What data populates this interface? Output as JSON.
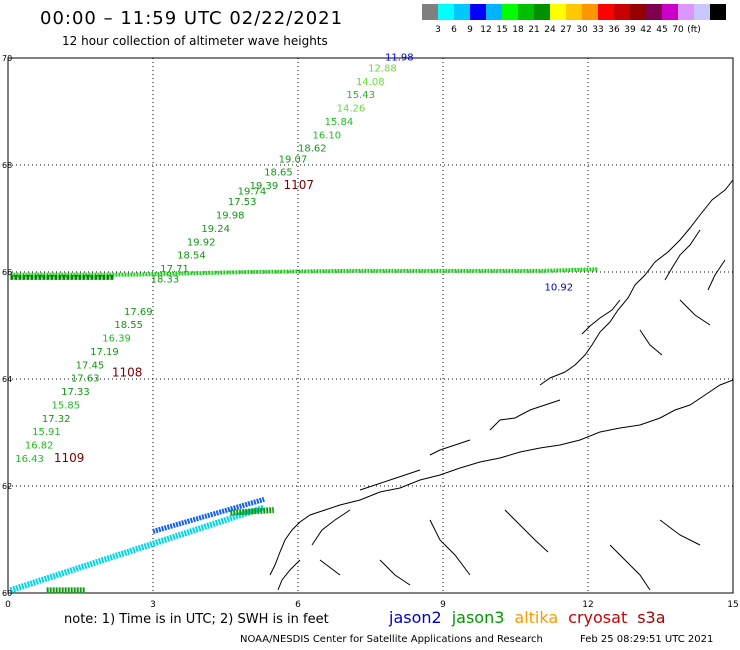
{
  "header": {
    "title": "00:00 – 11:59 UTC 02/22/2021",
    "subtitle": "12 hour collection of altimeter wave heights"
  },
  "scale": {
    "unit": "(ft)",
    "colors": [
      "#7f7f7f",
      "#00ffff",
      "#00c8ff",
      "#0000ff",
      "#00b4ff",
      "#00ff00",
      "#00c000",
      "#009000",
      "#ffff00",
      "#ffc800",
      "#ff9600",
      "#ff0000",
      "#c80000",
      "#960000",
      "#800050",
      "#c800c8",
      "#dc96ff",
      "#c8c8ff",
      "#000000"
    ],
    "labels": [
      "3",
      "6",
      "9",
      "12",
      "15",
      "18",
      "21",
      "24",
      "27",
      "30",
      "33",
      "36",
      "39",
      "42",
      "45",
      "70"
    ]
  },
  "axes": {
    "x_ticks": [
      "0",
      "3",
      "6",
      "9",
      "12",
      "15"
    ],
    "y_ticks": [
      "70",
      "68",
      "66",
      "64",
      "62",
      "60"
    ],
    "x_range": [
      0,
      15
    ],
    "y_range": [
      60,
      70
    ],
    "grid": true
  },
  "track_labels": [
    {
      "t": "11.98",
      "lon": 7.8,
      "lat": 69.95,
      "c": "#0000cc"
    },
    {
      "t": "12.88",
      "lon": 7.45,
      "lat": 69.75,
      "c": "#66dd33"
    },
    {
      "t": "14.08",
      "lon": 7.2,
      "lat": 69.5,
      "c": "#66dd33"
    },
    {
      "t": "15.43",
      "lon": 7.0,
      "lat": 69.25,
      "c": "#22bb22"
    },
    {
      "t": "14.26",
      "lon": 6.8,
      "lat": 69.0,
      "c": "#66dd33"
    },
    {
      "t": "15.84",
      "lon": 6.55,
      "lat": 68.75,
      "c": "#22bb22"
    },
    {
      "t": "16.10",
      "lon": 6.3,
      "lat": 68.5,
      "c": "#22bb22"
    },
    {
      "t": "18.62",
      "lon": 6.0,
      "lat": 68.25,
      "c": "#119911"
    },
    {
      "t": "19.07",
      "lon": 5.6,
      "lat": 68.05,
      "c": "#119911"
    },
    {
      "t": "18.65",
      "lon": 5.3,
      "lat": 67.8,
      "c": "#119911"
    },
    {
      "t": "19.39",
      "lon": 5.0,
      "lat": 67.55,
      "c": "#119911"
    },
    {
      "t": "19.74",
      "lon": 4.75,
      "lat": 67.45,
      "c": "#119911"
    },
    {
      "t": "17.53",
      "lon": 4.55,
      "lat": 67.25,
      "c": "#119911"
    },
    {
      "t": "19.98",
      "lon": 4.3,
      "lat": 67.0,
      "c": "#119911"
    },
    {
      "t": "19.24",
      "lon": 4.0,
      "lat": 66.75,
      "c": "#119911"
    },
    {
      "t": "19.92",
      "lon": 3.7,
      "lat": 66.5,
      "c": "#119911"
    },
    {
      "t": "18.54",
      "lon": 3.5,
      "lat": 66.25,
      "c": "#119911"
    },
    {
      "t": "17.71",
      "lon": 3.15,
      "lat": 66.0,
      "c": "#119911"
    },
    {
      "t": "18.33",
      "lon": 2.95,
      "lat": 65.8,
      "c": "#119911"
    },
    {
      "t": "17.69",
      "lon": 2.4,
      "lat": 65.2,
      "c": "#119911"
    },
    {
      "t": "18.55",
      "lon": 2.2,
      "lat": 64.95,
      "c": "#119911"
    },
    {
      "t": "16.39",
      "lon": 1.95,
      "lat": 64.7,
      "c": "#22bb22"
    },
    {
      "t": "17.19",
      "lon": 1.7,
      "lat": 64.45,
      "c": "#119911"
    },
    {
      "t": "17.45",
      "lon": 1.4,
      "lat": 64.2,
      "c": "#119911"
    },
    {
      "t": "17.63",
      "lon": 1.3,
      "lat": 63.95,
      "c": "#119911"
    },
    {
      "t": "17.33",
      "lon": 1.1,
      "lat": 63.7,
      "c": "#119911"
    },
    {
      "t": "15.85",
      "lon": 0.9,
      "lat": 63.45,
      "c": "#22bb22"
    },
    {
      "t": "17.32",
      "lon": 0.7,
      "lat": 63.2,
      "c": "#119911"
    },
    {
      "t": "15.91",
      "lon": 0.5,
      "lat": 62.95,
      "c": "#22bb22"
    },
    {
      "t": "16.82",
      "lon": 0.35,
      "lat": 62.7,
      "c": "#22bb22"
    },
    {
      "t": "16.43",
      "lon": 0.15,
      "lat": 62.45,
      "c": "#22bb22"
    },
    {
      "t": "1107",
      "lon": 5.7,
      "lat": 67.55,
      "c": "#7a0000"
    },
    {
      "t": "1108",
      "lon": 2.15,
      "lat": 64.05,
      "c": "#7a0000"
    },
    {
      "t": "1109",
      "lon": 0.95,
      "lat": 62.45,
      "c": "#7a0000"
    },
    {
      "t": "10.92",
      "lon": 11.1,
      "lat": 65.65,
      "c": "#0000cc"
    }
  ],
  "note": "note: 1) Time is in UTC; 2) SWH is in feet",
  "legend": [
    {
      "name": "jason2",
      "color": "#0000cc"
    },
    {
      "name": "jason3",
      "color": "#009900"
    },
    {
      "name": "altika",
      "color": "#ff9900"
    },
    {
      "name": "cryosat",
      "color": "#cc0000"
    },
    {
      "name": "s3a",
      "color": "#aa0000"
    }
  ],
  "footer": {
    "credit": "NOAA/NESDIS Center for Satellite Applications and Research",
    "timestamp": "Feb 25 08:29:51 UTC 2021"
  }
}
